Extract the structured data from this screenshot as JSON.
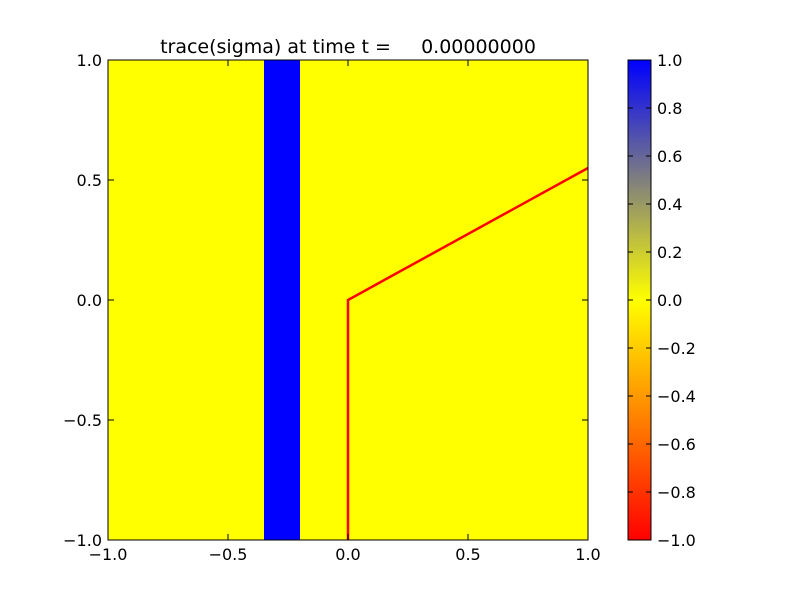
{
  "chart_data": {
    "type": "heatmap",
    "title": "trace(sigma) at time t =     0.00000000",
    "xlabel": "",
    "ylabel": "",
    "xlim": [
      -1.0,
      1.0
    ],
    "ylim": [
      -1.0,
      1.0
    ],
    "x_ticks": [
      -1.0,
      -0.5,
      0.0,
      0.5,
      1.0
    ],
    "x_tick_labels": [
      "−1.0",
      "−0.5",
      "0.0",
      "0.5",
      "1.0"
    ],
    "y_ticks": [
      1.0,
      0.5,
      0.0,
      -0.5,
      -1.0
    ],
    "y_tick_labels": [
      "1.0",
      "0.5",
      "0.0",
      "−0.5",
      "−1.0"
    ],
    "grid": false,
    "field": {
      "background_value": 0.0,
      "regions": [
        {
          "shape": "vertical-band",
          "x_from": -0.35,
          "x_to": -0.2,
          "value": 1.0
        }
      ]
    },
    "overlay_line": {
      "color": "#ff0000",
      "points": [
        [
          0.0,
          -1.0
        ],
        [
          0.0,
          0.0
        ],
        [
          1.0,
          0.55
        ]
      ]
    },
    "colorbar": {
      "position": "right",
      "min": -1.0,
      "max": 1.0,
      "stops": [
        {
          "value": -1.0,
          "color": "#ff0000"
        },
        {
          "value": 0.0,
          "color": "#ffff00"
        },
        {
          "value": 1.0,
          "color": "#0000ff"
        }
      ],
      "ticks": [
        1.0,
        0.8,
        0.6,
        0.4,
        0.2,
        0.0,
        -0.2,
        -0.4,
        -0.6,
        -0.8,
        -1.0
      ],
      "tick_labels": [
        "1.0",
        "0.8",
        "0.6",
        "0.4",
        "0.2",
        "0.0",
        "−0.2",
        "−0.4",
        "−0.6",
        "−0.8",
        "−1.0"
      ]
    }
  }
}
